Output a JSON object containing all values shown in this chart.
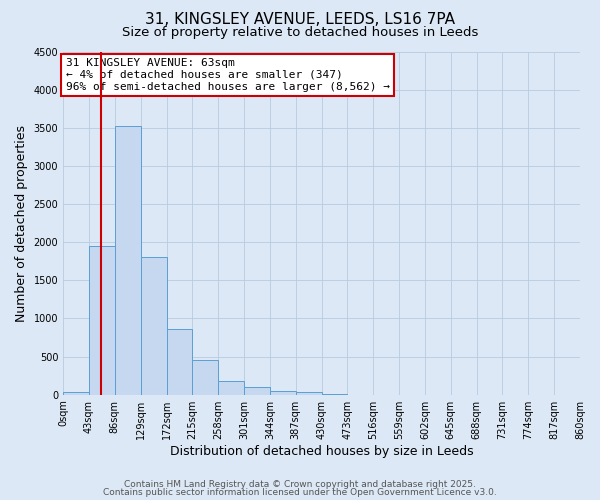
{
  "title": "31, KINGSLEY AVENUE, LEEDS, LS16 7PA",
  "subtitle": "Size of property relative to detached houses in Leeds",
  "xlabel": "Distribution of detached houses by size in Leeds",
  "ylabel": "Number of detached properties",
  "bar_edges": [
    0,
    43,
    86,
    129,
    172,
    215,
    258,
    301,
    344,
    387,
    430,
    473,
    516,
    559,
    602,
    645,
    688,
    731,
    774,
    817,
    860
  ],
  "bar_heights": [
    40,
    1950,
    3520,
    1800,
    860,
    460,
    175,
    100,
    55,
    30,
    15,
    0,
    0,
    0,
    0,
    0,
    0,
    0,
    0,
    0
  ],
  "bar_color": "#c5d8f0",
  "bar_edge_color": "#5a9fd4",
  "grid_color": "#b8cce0",
  "background_color": "#dce8f5",
  "red_line_x": 63,
  "annotation_title": "31 KINGSLEY AVENUE: 63sqm",
  "annotation_line1": "← 4% of detached houses are smaller (347)",
  "annotation_line2": "96% of semi-detached houses are larger (8,562) →",
  "annotation_box_color": "#ffffff",
  "annotation_box_edge": "#cc0000",
  "red_line_color": "#cc0000",
  "ylim": [
    0,
    4500
  ],
  "xlim": [
    0,
    860
  ],
  "tick_positions": [
    0,
    43,
    86,
    129,
    172,
    215,
    258,
    301,
    344,
    387,
    430,
    473,
    516,
    559,
    602,
    645,
    688,
    731,
    774,
    817,
    860
  ],
  "tick_labels": [
    "0sqm",
    "43sqm",
    "86sqm",
    "129sqm",
    "172sqm",
    "215sqm",
    "258sqm",
    "301sqm",
    "344sqm",
    "387sqm",
    "430sqm",
    "473sqm",
    "516sqm",
    "559sqm",
    "602sqm",
    "645sqm",
    "688sqm",
    "731sqm",
    "774sqm",
    "817sqm",
    "860sqm"
  ],
  "footer1": "Contains HM Land Registry data © Crown copyright and database right 2025.",
  "footer2": "Contains public sector information licensed under the Open Government Licence v3.0.",
  "title_fontsize": 11,
  "subtitle_fontsize": 9.5,
  "axis_label_fontsize": 9,
  "tick_fontsize": 7,
  "annotation_fontsize": 8,
  "footer_fontsize": 6.5
}
